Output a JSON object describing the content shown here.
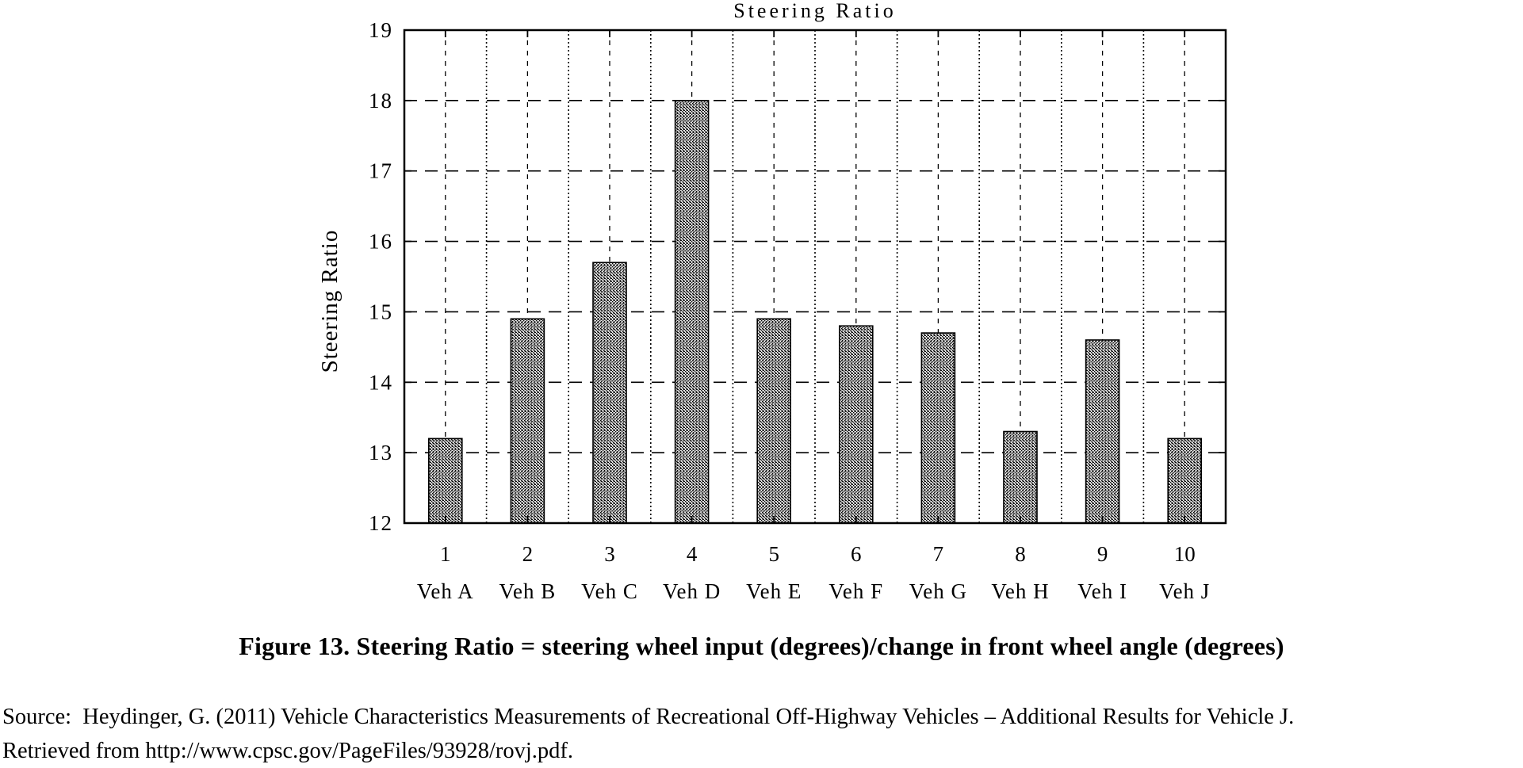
{
  "chart": {
    "title": "Steering Ratio",
    "y_axis_label": "Steering Ratio"
  },
  "chart_data": {
    "type": "bar",
    "title": "Steering Ratio",
    "ylabel": "Steering Ratio",
    "xlabel": "",
    "ylim": [
      12,
      19
    ],
    "y_ticks": [
      12,
      13,
      14,
      15,
      16,
      17,
      18,
      19
    ],
    "grid": "dashed horizontal and vertical gridlines, boxed axes",
    "legend": "none",
    "bar_fill": "gray halftone speckle",
    "bar_border_color": "#000000",
    "categories": [
      "Veh A",
      "Veh B",
      "Veh C",
      "Veh D",
      "Veh E",
      "Veh F",
      "Veh G",
      "Veh H",
      "Veh I",
      "Veh J"
    ],
    "x_tick_numbers": [
      "1",
      "2",
      "3",
      "4",
      "5",
      "6",
      "7",
      "8",
      "9",
      "10"
    ],
    "values": [
      13.2,
      14.9,
      15.7,
      18.0,
      14.9,
      14.8,
      14.7,
      13.3,
      14.6,
      13.2
    ]
  },
  "caption": "Figure 13. Steering Ratio = steering wheel input (degrees)/change in front wheel angle (degrees)",
  "source": {
    "line1": "Source:  Heydinger, G. (2011) Vehicle Characteristics Measurements of Recreational Off-Highway Vehicles – Additional Results for Vehicle J.",
    "line2": "Retrieved from http://www.cpsc.gov/PageFiles/93928/rovj.pdf."
  },
  "colors": {
    "ink": "#000000",
    "background": "#ffffff",
    "bar_mean_gray": "#909090"
  }
}
